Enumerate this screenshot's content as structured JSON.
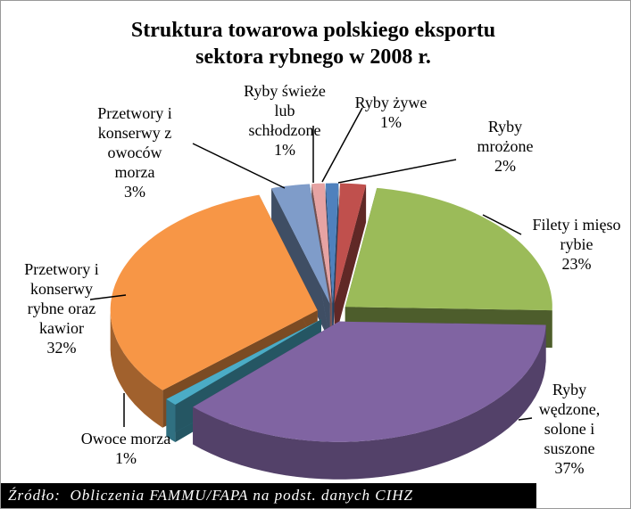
{
  "chart_data": {
    "type": "pie3d",
    "title": "Struktura towarowa polskiego eksportu\nsektora rybnego w 2008 r.",
    "categories": [
      "Ryby żywe",
      "Ryby\nmrożone",
      "Filety i mięso\nrybie",
      "Ryby\nwędzone,\nsolone i\nsuszone",
      "Owoce morza",
      "Przetwory i\nkonserwy\nrybne oraz\nkawior",
      "Przetwory i\nkonserwy z\nowoców\nmorza",
      "Ryby świeże\nlub\nschłodzone"
    ],
    "values": [
      1,
      2,
      23,
      37,
      1,
      32,
      3,
      1
    ],
    "value_labels": [
      "1%",
      "2%",
      "23%",
      "37%",
      "1%",
      "32%",
      "3%",
      "1%"
    ],
    "colors": [
      "#4f81bd",
      "#c0504d",
      "#9bbb59",
      "#8064a2",
      "#4bacc6",
      "#f79646",
      "#7f9cc9",
      "#e6a3a3"
    ],
    "source": "Źródło:  Obliczenia FAMMU/FAPA na podst. danych CIHZ"
  }
}
